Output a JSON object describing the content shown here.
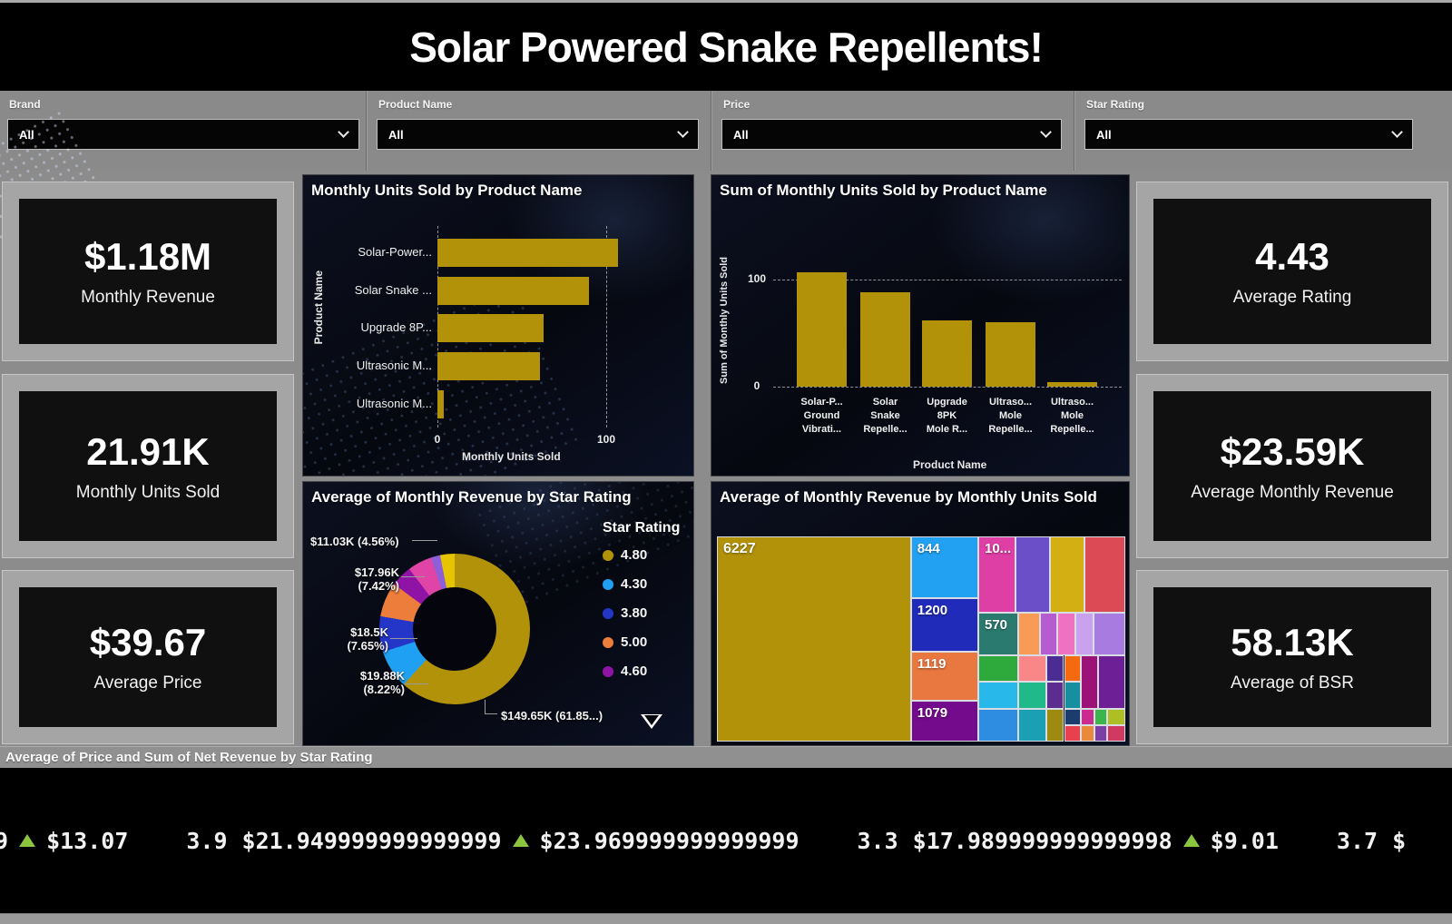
{
  "page": {
    "title": "Solar Powered Snake Repellents!"
  },
  "filters": [
    {
      "label": "Brand",
      "value": "All"
    },
    {
      "label": "Product Name",
      "value": "All"
    },
    {
      "label": "Price",
      "value": "All"
    },
    {
      "label": "Star Rating",
      "value": "All"
    }
  ],
  "kpis_left": [
    {
      "value": "$1.18M",
      "label": "Monthly Revenue"
    },
    {
      "value": "21.91K",
      "label": "Monthly Units Sold"
    },
    {
      "value": "$39.67",
      "label": "Average Price"
    }
  ],
  "kpis_right": [
    {
      "value": "4.43",
      "label": "Average Rating"
    },
    {
      "value": "$23.59K",
      "label": "Average Monthly Revenue"
    },
    {
      "value": "58.13K",
      "label": "Average of BSR"
    }
  ],
  "colors": {
    "gold": "#B29209",
    "light_blue": "#1FA0F2",
    "dark_blue": "#2436C7",
    "orange": "#ED7D3A",
    "purple": "#8F14A6",
    "pink": "#E044A7",
    "lavender": "#8E5FD6",
    "yellow": "#E7C400",
    "triangle_green": "#8CC63F"
  },
  "chart_data": [
    {
      "type": "bar",
      "orientation": "horizontal",
      "title": "Monthly Units Sold by Product Name",
      "categories": [
        "Solar-Power...",
        "Solar Snake ...",
        "Upgrade 8P...",
        "Ultrasonic M...",
        "Ultrasonic M..."
      ],
      "values": [
        107,
        90,
        63,
        61,
        4
      ],
      "xlabel": "Monthly Units Sold",
      "ylabel": "Product Name",
      "xlim": [
        0,
        120
      ],
      "xticks": [
        0,
        100
      ],
      "bar_color": "#B29209",
      "grid": "dashed"
    },
    {
      "type": "bar",
      "orientation": "vertical",
      "title": "Sum of Monthly Units Sold by Product Name",
      "categories": [
        "Solar-P...\nGround\nVibrati...",
        "Solar\nSnake\nRepelle...",
        "Upgrade\n8PK\nMole R...",
        "Ultraso...\nMole\nRepelle...",
        "Ultraso...\nMole\nRepelle..."
      ],
      "values": [
        107,
        88,
        62,
        60,
        4
      ],
      "xlabel": "Product Name",
      "ylabel": "Sum of Monthly Units Sold",
      "ylim": [
        0,
        120
      ],
      "yticks": [
        0,
        100
      ],
      "bar_color": "#B29209",
      "grid": "dashed"
    },
    {
      "type": "pie",
      "donut": true,
      "title": "Average of Monthly Revenue by Star Rating",
      "legend_title": "Star Rating",
      "legend_position": "right",
      "slices": [
        {
          "name": "4.80",
          "value_label": "$149.65K",
          "pct": 61.85,
          "color": "#B29209",
          "callout": "$149.65K (61.85...)",
          "in_legend": true
        },
        {
          "name": "4.30",
          "value_label": "$19.88K",
          "pct": 8.22,
          "color": "#1FA0F2",
          "callout": "$19.88K (8.22%)",
          "in_legend": true
        },
        {
          "name": "3.80",
          "value_label": "$18.5K",
          "pct": 7.65,
          "color": "#2436C7",
          "callout": "$18.5K (7.65%)",
          "in_legend": true
        },
        {
          "name": "5.00",
          "value_label": "$17.96K",
          "pct": 7.42,
          "color": "#ED7D3A",
          "callout": "$17.96K (7.42%)",
          "in_legend": true
        },
        {
          "name": "4.60",
          "value_label": "$11.03K",
          "pct": 4.56,
          "color": "#8F14A6",
          "callout": "$11.03K (4.56%)",
          "in_legend": true
        },
        {
          "name": "",
          "pct": 5.2,
          "color": "#E044A7",
          "in_legend": false
        },
        {
          "name": "",
          "pct": 2.0,
          "color": "#8E5FD6",
          "in_legend": false
        },
        {
          "name": "",
          "pct": 3.1,
          "color": "#E7C400",
          "in_legend": false
        }
      ]
    },
    {
      "type": "treemap",
      "title": "Average of Monthly Revenue by Monthly Units Sold",
      "cells": [
        {
          "label": "6227",
          "color": "#B29209",
          "x": 0,
          "y": 0,
          "w": 47.5,
          "h": 100
        },
        {
          "label": "844",
          "color": "#22A0F2",
          "x": 47.5,
          "y": 0,
          "w": 16.5,
          "h": 30
        },
        {
          "label": "1200",
          "color": "#202CB9",
          "x": 47.5,
          "y": 30,
          "w": 16.5,
          "h": 26
        },
        {
          "label": "1119",
          "color": "#E87840",
          "x": 47.5,
          "y": 56,
          "w": 16.5,
          "h": 24
        },
        {
          "label": "1079",
          "color": "#730B8C",
          "x": 47.5,
          "y": 80,
          "w": 16.5,
          "h": 20
        },
        {
          "label": "10...",
          "color": "#DD3FA4",
          "x": 64,
          "y": 0,
          "w": 9,
          "h": 37
        },
        {
          "color": "#6B4FC8",
          "x": 73,
          "y": 0,
          "w": 8.5,
          "h": 37
        },
        {
          "color": "#D4AF14",
          "x": 81.5,
          "y": 0,
          "w": 8.4,
          "h": 37
        },
        {
          "color": "#DC4B55",
          "x": 89.9,
          "y": 0,
          "w": 10.1,
          "h": 37
        },
        {
          "label": "570",
          "color": "#2A7A6F",
          "x": 64,
          "y": 37,
          "w": 9.7,
          "h": 21
        },
        {
          "color": "#F79B57",
          "x": 73.7,
          "y": 37,
          "w": 5.4,
          "h": 21
        },
        {
          "color": "#B75BD1",
          "x": 79.1,
          "y": 37,
          "w": 4.3,
          "h": 21
        },
        {
          "color": "#EF72C2",
          "x": 83.4,
          "y": 37,
          "w": 4.3,
          "h": 21
        },
        {
          "color": "#C9A2EE",
          "x": 87.7,
          "y": 37,
          "w": 4.6,
          "h": 21
        },
        {
          "color": "#A87BE0",
          "x": 92.3,
          "y": 37,
          "w": 7.7,
          "h": 21
        },
        {
          "color": "#2EA93C",
          "x": 64,
          "y": 58,
          "w": 9.7,
          "h": 13
        },
        {
          "color": "#F98787",
          "x": 73.7,
          "y": 58,
          "w": 7,
          "h": 13
        },
        {
          "color": "#4B2C92",
          "x": 80.7,
          "y": 58,
          "w": 4.3,
          "h": 13
        },
        {
          "color": "#F56A10",
          "x": 85,
          "y": 58,
          "w": 4,
          "h": 13
        },
        {
          "color": "#9C1377",
          "x": 89,
          "y": 58,
          "w": 4.3,
          "h": 26
        },
        {
          "color": "#6D2096",
          "x": 93.3,
          "y": 58,
          "w": 6.7,
          "h": 26
        },
        {
          "color": "#28B8EA",
          "x": 64,
          "y": 71,
          "w": 9.7,
          "h": 13
        },
        {
          "color": "#1FB98A",
          "x": 73.7,
          "y": 71,
          "w": 7,
          "h": 13
        },
        {
          "color": "#5B2D8E",
          "x": 80.7,
          "y": 71,
          "w": 4.3,
          "h": 13
        },
        {
          "color": "#178FA0",
          "x": 85,
          "y": 71,
          "w": 4,
          "h": 13
        },
        {
          "color": "#2E8DE0",
          "x": 64,
          "y": 84,
          "w": 9.7,
          "h": 16
        },
        {
          "color": "#1B9FB5",
          "x": 73.7,
          "y": 84,
          "w": 7,
          "h": 16
        },
        {
          "color": "#9C8B10",
          "x": 80.7,
          "y": 84,
          "w": 4.3,
          "h": 16
        },
        {
          "color": "#1C3C6E",
          "x": 85,
          "y": 84,
          "w": 4,
          "h": 8
        },
        {
          "color": "#E8404F",
          "x": 85,
          "y": 92,
          "w": 4,
          "h": 8
        },
        {
          "color": "#C92B8E",
          "x": 89,
          "y": 84,
          "w": 3.4,
          "h": 8
        },
        {
          "color": "#E8893B",
          "x": 89,
          "y": 92,
          "w": 3.4,
          "h": 8
        },
        {
          "color": "#3CB54A",
          "x": 92.4,
          "y": 84,
          "w": 3.2,
          "h": 8
        },
        {
          "color": "#7C3FA8",
          "x": 92.4,
          "y": 92,
          "w": 3.2,
          "h": 8
        },
        {
          "color": "#AEBE25",
          "x": 95.6,
          "y": 84,
          "w": 4.4,
          "h": 8
        },
        {
          "color": "#D03A60",
          "x": 95.6,
          "y": 92,
          "w": 4.4,
          "h": 8
        }
      ]
    }
  ],
  "bottom": {
    "title": "Average of Price and Sum of Net Revenue by Star Rating",
    "ticker": [
      {
        "rating": "",
        "price": "9",
        "up": true,
        "net": "$13.07"
      },
      {
        "rating": "3.9",
        "price": "$21.949999999999999",
        "up": true,
        "net": "$23.969999999999999"
      },
      {
        "rating": "3.3",
        "price": "$17.989999999999998",
        "up": true,
        "net": "$9.01"
      },
      {
        "rating": "3.7",
        "price": "$",
        "up": false,
        "net": ""
      }
    ]
  }
}
